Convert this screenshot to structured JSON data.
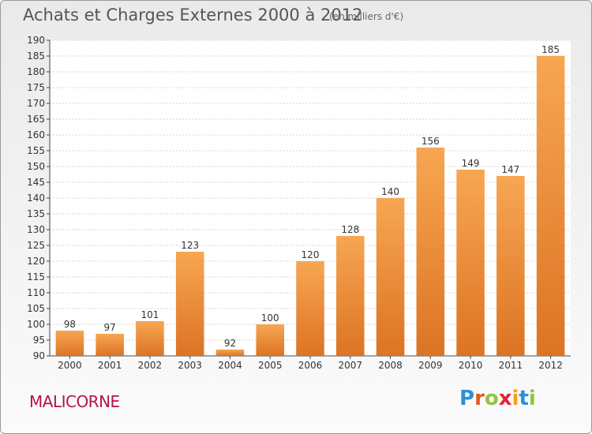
{
  "header": {
    "title": "Achats et Charges Externes 2000 à 2012",
    "unit": "(en milliers d'€)"
  },
  "footer": {
    "place": "MALICORNE",
    "logo": "Proxiti"
  },
  "colors": {
    "bar_top": "#f7a652",
    "bar_bottom": "#dc7424",
    "place": "#b5154a",
    "logo_letters": [
      "#2f8fd4",
      "#e05a1c",
      "#8cc63f",
      "#e4223a",
      "#f5a01a",
      "#2f8fd4",
      "#8cc63f"
    ]
  },
  "chart_data": {
    "type": "bar",
    "title": "Achats et Charges Externes 2000 à 2012",
    "categories": [
      "2000",
      "2001",
      "2002",
      "2003",
      "2004",
      "2005",
      "2006",
      "2007",
      "2008",
      "2009",
      "2010",
      "2011",
      "2012"
    ],
    "values": [
      98,
      97,
      101,
      123,
      92,
      100,
      120,
      128,
      140,
      156,
      149,
      147,
      185
    ],
    "ylim": [
      90,
      190
    ],
    "yticks": [
      90,
      95,
      100,
      105,
      110,
      115,
      120,
      125,
      130,
      135,
      140,
      145,
      150,
      155,
      160,
      165,
      170,
      175,
      180,
      185,
      190
    ],
    "grid": true,
    "legend": "none"
  }
}
